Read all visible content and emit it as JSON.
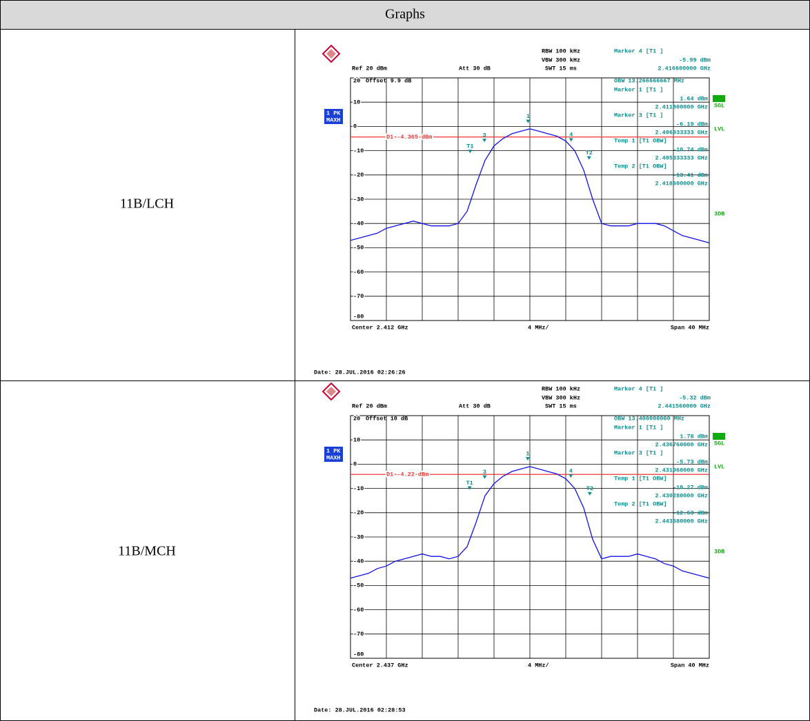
{
  "header": {
    "title": "Graphs"
  },
  "rows": [
    {
      "label": "11B/LCH",
      "screen": {
        "rbw": "RBW 100 kHz",
        "vbw": "VBW 300 kHz",
        "swt": "SWT 15 ms",
        "ref": "Ref 20 dBm",
        "att": "Att 30 dB",
        "offset": "Offset 9.9 dB",
        "badge": [
          "1 PK",
          "MAXH"
        ],
        "side": [
          "SGL",
          "LVL",
          "3DB"
        ],
        "ylim": [
          -80,
          20
        ],
        "yticks": [
          20,
          10,
          0,
          -10,
          -20,
          -30,
          -40,
          -50,
          -60,
          -70,
          -80
        ],
        "center": {
          "value": 2.412,
          "label": "Center 2.412 GHz"
        },
        "span": {
          "value": 40,
          "label": "Span 40 MHz"
        },
        "div": "4 MHz/",
        "d1": {
          "value": -4.365,
          "label": "D1 -4.365 dBm"
        },
        "obw": "OBW 13.266666667 MHz",
        "readouts": [
          {
            "title": "Marker 4 [T1 ]",
            "id": "4",
            "level": {
              "value": -5.99,
              "label": "-5.99 dBm"
            },
            "freq": {
              "value": 2.4166,
              "label": "2.416600000 GHz"
            }
          },
          {
            "title": "Marker 1 [T1 ]",
            "id": "1",
            "level": {
              "value": 1.64,
              "label": "1.64 dBm"
            },
            "freq": {
              "value": 2.4118,
              "label": "2.411800000 GHz"
            }
          },
          {
            "title": "Marker 3 [T1 ]",
            "id": "3",
            "level": {
              "value": -6.19,
              "label": "-6.19 dBm"
            },
            "freq": {
              "value": 2.406933333,
              "label": "2.406933333 GHz"
            }
          },
          {
            "title": "Temp 1 [T1 OBW]",
            "id": "T1",
            "level": {
              "value": -10.74,
              "label": "-10.74 dBm"
            },
            "freq": {
              "value": 2.405333333,
              "label": "2.405333333 GHz"
            }
          },
          {
            "title": "Temp 2 [T1 OBW]",
            "id": "T2",
            "level": {
              "value": -13.41,
              "label": "-13.41 dBm"
            },
            "freq": {
              "value": 2.4186,
              "label": "2.418600000 GHz"
            }
          }
        ],
        "trace": {
          "values": [
            -47,
            -46,
            -45,
            -44,
            -42,
            -41,
            -40,
            -39,
            -40,
            -41,
            -41,
            -41,
            -40,
            -35,
            -24,
            -14,
            -8,
            -5,
            -3,
            -2,
            -1,
            -2,
            -3,
            -4,
            -6,
            -10,
            -18,
            -30,
            -40,
            -41,
            -41,
            -41,
            -40,
            -40,
            -40,
            -41,
            -43,
            -45,
            -46,
            -47,
            -48
          ]
        },
        "date": "Date: 28.JUL.2016 02:26:26"
      }
    },
    {
      "label": "11B/MCH",
      "screen": {
        "rbw": "RBW 100 kHz",
        "vbw": "VBW 300 kHz",
        "swt": "SWT 15 ms",
        "ref": "Ref 20 dBm",
        "att": "Att 30 dB",
        "offset": "Offset 10 dB",
        "badge": [
          "1 PK",
          "MAXH"
        ],
        "side": [
          "SGL",
          "LVL",
          "3DB"
        ],
        "ylim": [
          -80,
          20
        ],
        "yticks": [
          20,
          10,
          0,
          -10,
          -20,
          -30,
          -40,
          -50,
          -60,
          -70,
          -80
        ],
        "center": {
          "value": 2.437,
          "label": "Center 2.437 GHz"
        },
        "span": {
          "value": 40,
          "label": "Span 40 MHz"
        },
        "div": "4 MHz/",
        "d1": {
          "value": -4.22,
          "label": "D1 -4.22 dBm"
        },
        "obw": "OBW 13.400000000 MHz",
        "readouts": [
          {
            "title": "Marker 4 [T1 ]",
            "id": "4",
            "level": {
              "value": -5.32,
              "label": "-5.32 dBm"
            },
            "freq": {
              "value": 2.44156,
              "label": "2.441560000 GHz"
            }
          },
          {
            "title": "Marker 1 [T1 ]",
            "id": "1",
            "level": {
              "value": 1.78,
              "label": "1.78 dBm"
            },
            "freq": {
              "value": 2.43676,
              "label": "2.436760000 GHz"
            }
          },
          {
            "title": "Marker 3 [T1 ]",
            "id": "3",
            "level": {
              "value": -5.73,
              "label": "-5.73 dBm"
            },
            "freq": {
              "value": 2.43196,
              "label": "2.431960000 GHz"
            }
          },
          {
            "title": "Temp 1 [T1 OBW]",
            "id": "T1",
            "level": {
              "value": -10.27,
              "label": "-10.27 dBm"
            },
            "freq": {
              "value": 2.43028,
              "label": "2.430280000 GHz"
            }
          },
          {
            "title": "Temp 2 [T1 OBW]",
            "id": "T2",
            "level": {
              "value": -12.63,
              "label": "-12.63 dBm"
            },
            "freq": {
              "value": 2.44368,
              "label": "2.443680000 GHz"
            }
          }
        ],
        "trace": {
          "values": [
            -47,
            -46,
            -45,
            -43,
            -42,
            -40,
            -39,
            -38,
            -37,
            -38,
            -38,
            -39,
            -38,
            -34,
            -24,
            -13,
            -8,
            -5,
            -3,
            -2,
            -1,
            -2,
            -3,
            -4,
            -6,
            -10,
            -18,
            -31,
            -39,
            -38,
            -38,
            -38,
            -37,
            -38,
            -39,
            -41,
            -42,
            -44,
            -45,
            -46,
            -47
          ]
        },
        "date": "Date: 28.JUL.2016 02:28:53"
      }
    }
  ]
}
